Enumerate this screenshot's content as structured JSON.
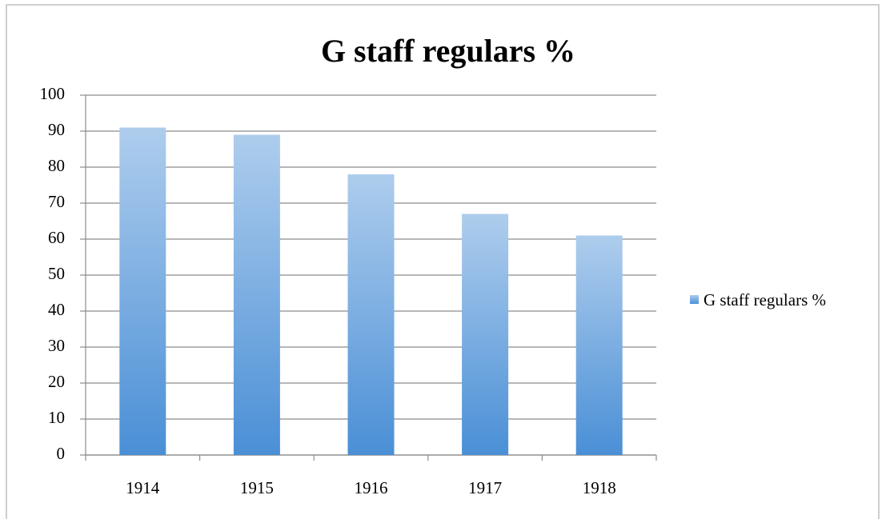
{
  "chart_data": {
    "type": "bar",
    "title": "G staff regulars %",
    "categories": [
      "1914",
      "1915",
      "1916",
      "1917",
      "1918"
    ],
    "series": [
      {
        "name": "G staff regulars %",
        "color": "#4a8fd6",
        "values": [
          91,
          89,
          78,
          67,
          61
        ]
      }
    ],
    "ylim": [
      0,
      100
    ],
    "yticks": [
      0,
      10,
      20,
      30,
      40,
      50,
      60,
      70,
      80,
      90,
      100
    ],
    "grid": true,
    "legend": "right"
  }
}
